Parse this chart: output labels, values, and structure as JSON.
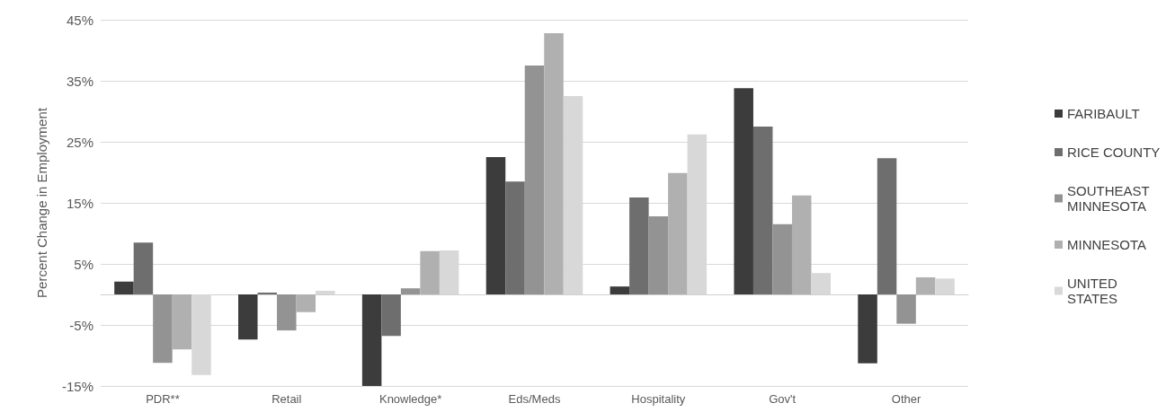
{
  "chart_data": {
    "type": "bar",
    "ylabel": "Percent Change in Employment",
    "categories": [
      "PDR**",
      "Retail",
      "Knowledge*",
      "Eds/Meds",
      "Hospitality",
      "Gov't",
      "Other"
    ],
    "series": [
      {
        "name": "FARIBAULT",
        "color": "#3c3c3c",
        "values": [
          2.1,
          -7.4,
          -15,
          22.5,
          1.3,
          33.8,
          -11.3
        ]
      },
      {
        "name": "RICE COUNTY",
        "color": "#6e6e6e",
        "values": [
          8.5,
          0.3,
          -6.8,
          18.5,
          15.9,
          27.5,
          22.3
        ]
      },
      {
        "name": "SOUTHEAST MINNESOTA",
        "color": "#939393",
        "values": [
          -11.2,
          -5.9,
          1.0,
          37.5,
          12.8,
          11.5,
          -4.8
        ]
      },
      {
        "name": "MINNESOTA",
        "color": "#b0b0b0",
        "values": [
          -9,
          -2.9,
          7.1,
          42.8,
          19.9,
          16.2,
          2.8
        ]
      },
      {
        "name": "UNITED STATES",
        "color": "#d8d8d8",
        "values": [
          -13.2,
          0.6,
          7.2,
          32.5,
          26.2,
          3.5,
          2.6
        ]
      }
    ],
    "ylim": [
      -15,
      45
    ],
    "yticks": [
      {
        "value": -15,
        "label": "-15%"
      },
      {
        "value": -5,
        "label": "-5%"
      },
      {
        "value": 5,
        "label": "5%"
      },
      {
        "value": 15,
        "label": "15%"
      },
      {
        "value": 25,
        "label": "25%"
      },
      {
        "value": 35,
        "label": "35%"
      },
      {
        "value": 45,
        "label": "45%"
      }
    ],
    "grid": "y",
    "legend": "right"
  }
}
